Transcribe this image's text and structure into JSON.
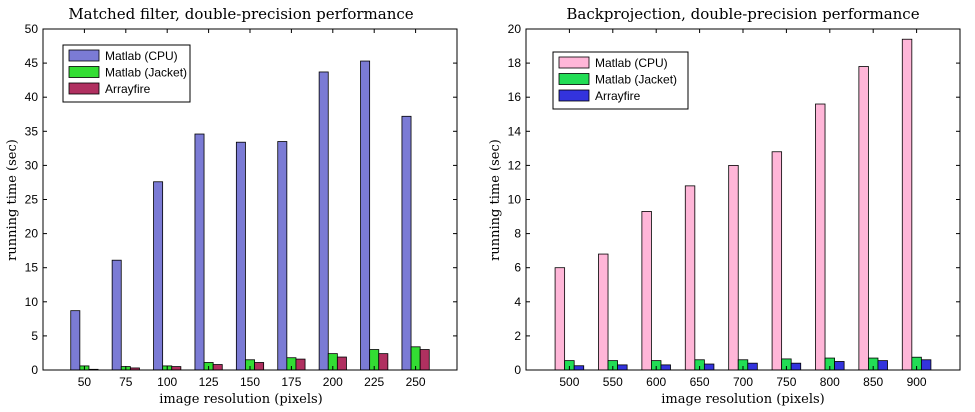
{
  "chart_data": [
    {
      "type": "bar",
      "title": "Matched filter, double-precision performance",
      "xlabel": "image resolution (pixels)",
      "ylabel": "running time (sec)",
      "categories": [
        "50",
        "75",
        "100",
        "125",
        "150",
        "175",
        "200",
        "225",
        "250"
      ],
      "ylim": [
        0,
        50
      ],
      "yticks": [
        0,
        5,
        10,
        15,
        20,
        25,
        30,
        35,
        40,
        45,
        50
      ],
      "legend_position": "top-left",
      "grid": false,
      "series": [
        {
          "name": "Matlab (CPU)",
          "color": "#7b7bd5",
          "values": [
            8.7,
            16.1,
            27.6,
            34.6,
            33.4,
            33.5,
            43.7,
            45.3,
            37.2
          ]
        },
        {
          "name": "Matlab (Jacket)",
          "color": "#33dd33",
          "values": [
            0.6,
            0.5,
            0.6,
            1.1,
            1.5,
            1.8,
            2.4,
            3.0,
            3.4
          ]
        },
        {
          "name": "Arrayfire",
          "color": "#b03060",
          "values": [
            0.1,
            0.3,
            0.5,
            0.8,
            1.1,
            1.6,
            1.9,
            2.4,
            3.0
          ]
        }
      ]
    },
    {
      "type": "bar",
      "title": "Backprojection, double-precision performance",
      "xlabel": "image resolution (pixels)",
      "ylabel": "running time (sec)",
      "categories": [
        "500",
        "550",
        "600",
        "650",
        "700",
        "750",
        "800",
        "850",
        "900"
      ],
      "ylim": [
        0,
        20
      ],
      "yticks": [
        0,
        2,
        4,
        6,
        8,
        10,
        12,
        14,
        16,
        18,
        20
      ],
      "legend_position": "top-left",
      "grid": false,
      "series": [
        {
          "name": "Matlab (CPU)",
          "color": "#ffb6d8",
          "values": [
            6.0,
            6.8,
            9.3,
            10.8,
            12.0,
            12.8,
            15.6,
            17.8,
            19.4
          ]
        },
        {
          "name": "Matlab (Jacket)",
          "color": "#22dd55",
          "values": [
            0.55,
            0.55,
            0.55,
            0.6,
            0.6,
            0.65,
            0.7,
            0.7,
            0.75
          ]
        },
        {
          "name": "Arrayfire",
          "color": "#3333dd",
          "values": [
            0.25,
            0.3,
            0.3,
            0.35,
            0.4,
            0.4,
            0.5,
            0.55,
            0.6
          ]
        }
      ]
    }
  ]
}
